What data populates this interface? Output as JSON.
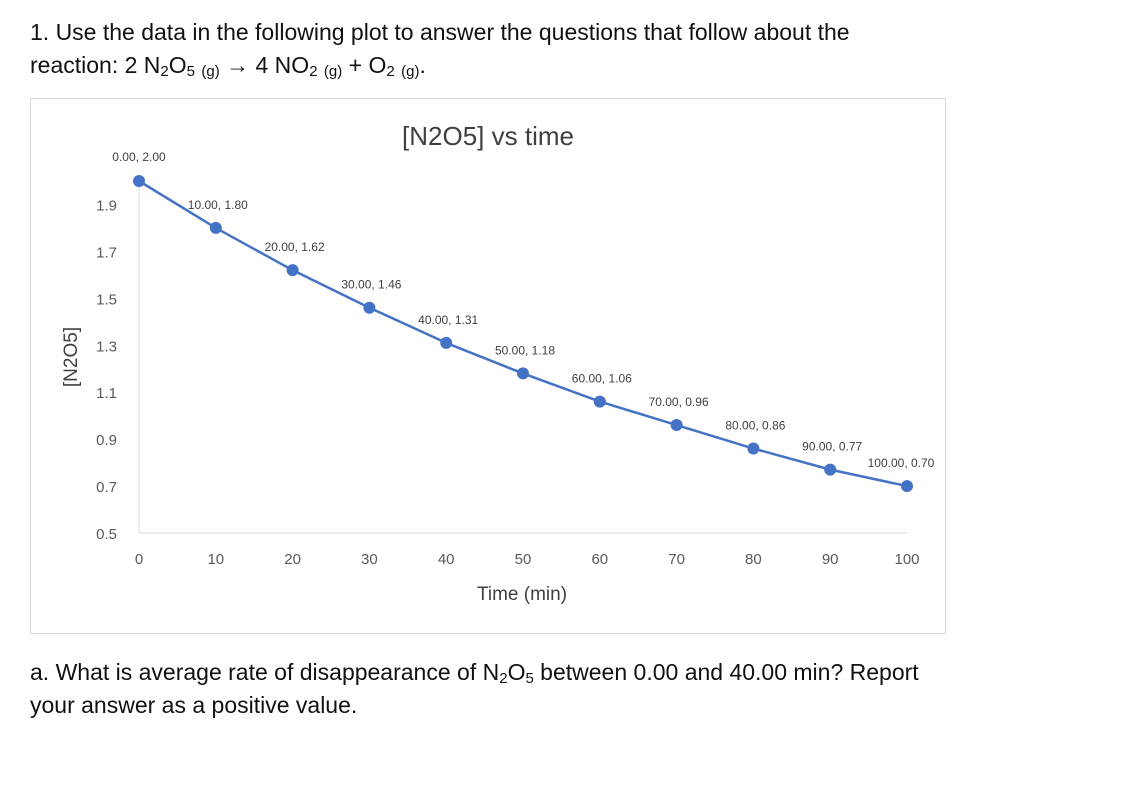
{
  "question1": {
    "line1": "1. Use the data in the following plot to answer the questions that follow about the",
    "line2_prefix": "reaction: 2 N",
    "line2_sub_a": "2",
    "line2_b": "O",
    "line2_sub_b": "5",
    "line2_phase_a": "(g)",
    "line2_arrow_part": "→ 4 NO",
    "line2_sub_c": "2",
    "line2_phase_b": "(g)",
    "line2_plus": "+ O",
    "line2_sub_d": "2",
    "line2_phase_c": "(g)",
    "line2_end": "."
  },
  "question_a": {
    "line1_prefix": "a. What is average rate of disappearance of N",
    "line1_sub_a": "2",
    "line1_mid": "O",
    "line1_sub_b": "5",
    "line1_suffix": " between 0.00 and 40.00 min? Report",
    "line2": "your answer as a positive value."
  },
  "chart_data": {
    "type": "line",
    "title": "[N2O5] vs time",
    "xlabel": "Time (min)",
    "ylabel": "[N2O5]",
    "x": [
      0,
      10,
      20,
      30,
      40,
      50,
      60,
      70,
      80,
      90,
      100
    ],
    "series": [
      {
        "values": [
          2.0,
          1.8,
          1.62,
          1.46,
          1.31,
          1.18,
          1.06,
          0.96,
          0.86,
          0.77,
          0.7
        ]
      }
    ],
    "data_labels": [
      "0.00, 2.00",
      "10.00, 1.80",
      "20.00, 1.62",
      "30.00, 1.46",
      "40.00, 1.31",
      "50.00, 1.18",
      "60.00, 1.06",
      "70.00, 0.96",
      "80.00, 0.86",
      "90.00, 0.77",
      "100.00, 0.70"
    ],
    "xticks": [
      "0",
      "10",
      "20",
      "30",
      "40",
      "50",
      "60",
      "70",
      "80",
      "90",
      "100"
    ],
    "yticks": [
      "0.5",
      "0.7",
      "0.9",
      "1.1",
      "1.3",
      "1.5",
      "1.7",
      "1.9"
    ],
    "xlim": [
      0,
      100
    ],
    "ylim": [
      0.5,
      2.0
    ],
    "grid": false,
    "legend": "none",
    "line_color": "#4472C4"
  }
}
